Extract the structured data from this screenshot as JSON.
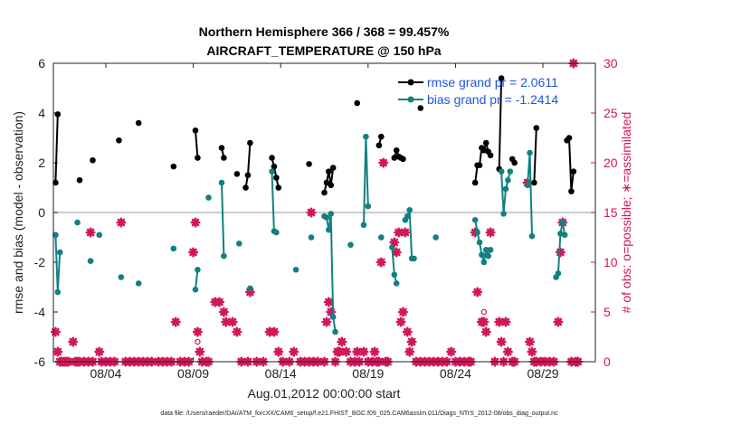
{
  "colors": {
    "rmse": "#000000",
    "bias": "#128080",
    "obs": "#d3155a",
    "zero_line": "#bbbbbb",
    "legend_text": "#1f55e0"
  },
  "chart_data": {
    "type": "line",
    "title": "Northern Hemisphere 366 / 368 = 99.457%",
    "subtitle": "AIRCRAFT_TEMPERATURE @ 150 hPa",
    "xlabel": "Aug.01,2012 00:00:00 start",
    "ylabel": "rmse and bias (model - observation)",
    "y2label": "# of obs: o=possible; ∗=assimilated",
    "footer": "data file: /Users/raeder/DAI/ATM_forcXX/CAM6_setup/f.e21.FHIST_BGC.f09_025.CAM6assim.011/Diags_NTrS_2012-08/obs_diag_output.nc",
    "xlim": [
      1,
      32
    ],
    "ylim": [
      -6,
      6
    ],
    "y2lim": [
      0,
      30
    ],
    "xticks": [
      {
        "day": 4,
        "label": "08/04"
      },
      {
        "day": 9,
        "label": "08/09"
      },
      {
        "day": 14,
        "label": "08/14"
      },
      {
        "day": 19,
        "label": "08/19"
      },
      {
        "day": 24,
        "label": "08/24"
      },
      {
        "day": 29,
        "label": "08/29"
      }
    ],
    "yticks": [
      "-6",
      "-4",
      "-2",
      "0",
      "2",
      "4",
      "6"
    ],
    "y2ticks": [
      "0",
      "5",
      "10",
      "15",
      "20",
      "25",
      "30"
    ],
    "legend": {
      "location": "top-right",
      "rmse_label": "rmse grand pr = 2.0611",
      "bias_label": "bias grand pr = -1.2414"
    },
    "series": [
      {
        "name": "rmse",
        "segments": [
          [
            [
              1.125,
              1.2
            ],
            [
              1.25,
              3.95
            ]
          ],
          [
            [
              2.5,
              1.3
            ]
          ],
          [
            [
              3.25,
              2.1
            ]
          ],
          [
            [
              4.75,
              2.9
            ]
          ],
          [
            [
              5.875,
              3.6
            ]
          ],
          [
            [
              7.875,
              1.85
            ]
          ],
          [
            [
              9.125,
              3.3
            ],
            [
              9.25,
              2.2
            ]
          ],
          [
            [
              10.625,
              2.6
            ],
            [
              10.75,
              2.2
            ]
          ],
          [
            [
              11.5,
              1.55
            ]
          ],
          [
            [
              12.0,
              1.0
            ],
            [
              12.125,
              1.5
            ],
            [
              12.25,
              2.8
            ]
          ],
          [
            [
              13.5,
              2.2
            ],
            [
              13.625,
              1.85
            ],
            [
              13.75,
              1.4
            ],
            [
              13.875,
              1.0
            ]
          ],
          [
            [
              15.625,
              1.95
            ]
          ],
          [
            [
              16.5,
              0.8
            ],
            [
              16.625,
              1.2
            ],
            [
              16.75,
              1.65
            ],
            [
              16.875,
              1.1
            ],
            [
              17.0,
              1.8
            ]
          ],
          [
            [
              18.375,
              4.4
            ]
          ],
          [
            [
              19.625,
              2.7
            ],
            [
              19.75,
              3.05
            ]
          ],
          [
            [
              20.5,
              2.2
            ],
            [
              20.625,
              2.5
            ],
            [
              20.75,
              2.25
            ],
            [
              20.875,
              2.2
            ],
            [
              21.0,
              2.15
            ]
          ],
          [
            [
              22.0,
              4.2
            ]
          ],
          [
            [
              25.125,
              1.2
            ],
            [
              25.25,
              1.9
            ],
            [
              25.375,
              1.9
            ],
            [
              25.5,
              2.6
            ],
            [
              25.625,
              2.5
            ],
            [
              25.75,
              2.8
            ],
            [
              25.875,
              2.45
            ],
            [
              26.0,
              2.3
            ]
          ],
          [
            [
              26.5,
              1.75
            ],
            [
              26.625,
              5.4
            ]
          ],
          [
            [
              27.25,
              2.15
            ],
            [
              27.375,
              2.0
            ]
          ],
          [
            [
              28.5,
              1.2
            ],
            [
              28.625,
              3.4
            ]
          ],
          [
            [
              30.375,
              2.9
            ],
            [
              30.5,
              3.0
            ],
            [
              30.625,
              0.85
            ],
            [
              30.75,
              1.65
            ]
          ]
        ]
      },
      {
        "name": "bias",
        "segments": [
          [
            [
              1.125,
              -0.9
            ],
            [
              1.25,
              -3.2
            ],
            [
              1.375,
              -1.6
            ]
          ],
          [
            [
              2.375,
              -0.4
            ]
          ],
          [
            [
              3.125,
              -1.95
            ]
          ],
          [
            [
              3.625,
              -0.9
            ]
          ],
          [
            [
              4.875,
              -2.6
            ]
          ],
          [
            [
              5.875,
              -2.85
            ]
          ],
          [
            [
              7.875,
              -1.45
            ]
          ],
          [
            [
              9.125,
              -3.1
            ],
            [
              9.25,
              -2.3
            ]
          ],
          [
            [
              9.875,
              0.6
            ]
          ],
          [
            [
              10.625,
              1.2
            ],
            [
              10.75,
              -1.75
            ]
          ],
          [
            [
              11.625,
              -1.25
            ]
          ],
          [
            [
              12.25,
              -3.05
            ]
          ],
          [
            [
              13.5,
              1.65
            ],
            [
              13.625,
              -0.75
            ],
            [
              13.75,
              -0.8
            ]
          ],
          [
            [
              14.875,
              -2.3
            ]
          ],
          [
            [
              15.75,
              -1.0
            ]
          ],
          [
            [
              16.5,
              -0.15
            ],
            [
              16.625,
              -0.2
            ],
            [
              16.75,
              -0.7
            ],
            [
              16.875,
              -0.05
            ],
            [
              17.0,
              -4.2
            ],
            [
              17.125,
              -4.8
            ]
          ],
          [
            [
              18.0,
              -1.3
            ]
          ],
          [
            [
              18.75,
              -0.5
            ],
            [
              18.875,
              3.05
            ],
            [
              19.0,
              0.25
            ]
          ],
          [
            [
              19.75,
              -1.0
            ]
          ],
          [
            [
              20.375,
              -1.4
            ],
            [
              20.5,
              -2.5
            ],
            [
              20.625,
              -2.85
            ]
          ],
          [
            [
              21.125,
              -0.3
            ],
            [
              21.25,
              -0.15
            ],
            [
              21.375,
              0.1
            ],
            [
              21.5,
              -1.85
            ],
            [
              21.625,
              -1.85
            ]
          ],
          [
            [
              22.875,
              -1.0
            ]
          ],
          [
            [
              25.125,
              -0.3
            ],
            [
              25.25,
              -0.8
            ],
            [
              25.375,
              -1.2
            ],
            [
              25.5,
              -1.7
            ],
            [
              25.625,
              -2.0
            ],
            [
              25.75,
              -1.5
            ],
            [
              25.875,
              -1.75
            ],
            [
              26.0,
              -1.5
            ]
          ],
          [
            [
              26.625,
              1.65
            ],
            [
              26.75,
              -0.05
            ],
            [
              26.875,
              0.95
            ],
            [
              27.0,
              1.3
            ],
            [
              27.125,
              1.65
            ]
          ],
          [
            [
              28.125,
              1.1
            ],
            [
              28.25,
              2.4
            ],
            [
              28.375,
              -0.95
            ]
          ],
          [
            [
              29.75,
              -2.6
            ],
            [
              29.875,
              -2.45
            ],
            [
              30.0,
              -0.85
            ],
            [
              30.125,
              -0.4
            ],
            [
              30.25,
              -0.9
            ]
          ]
        ]
      }
    ],
    "obs_assimilated": [
      [
        1.125,
        3
      ],
      [
        1.25,
        1
      ],
      [
        1.375,
        0
      ],
      [
        1.5,
        0
      ],
      [
        1.625,
        0
      ],
      [
        1.75,
        0
      ],
      [
        1.875,
        0
      ],
      [
        2.125,
        2
      ],
      [
        2.25,
        0
      ],
      [
        2.375,
        0
      ],
      [
        2.5,
        0
      ],
      [
        2.75,
        0
      ],
      [
        3.0,
        0
      ],
      [
        3.125,
        13
      ],
      [
        3.25,
        0
      ],
      [
        3.625,
        1
      ],
      [
        3.75,
        0
      ],
      [
        4.0,
        0
      ],
      [
        4.25,
        0
      ],
      [
        4.5,
        0
      ],
      [
        4.875,
        14
      ],
      [
        5.125,
        0
      ],
      [
        5.375,
        0
      ],
      [
        5.625,
        0
      ],
      [
        5.875,
        0
      ],
      [
        6.125,
        0
      ],
      [
        6.375,
        0
      ],
      [
        6.625,
        0
      ],
      [
        7.0,
        0
      ],
      [
        7.25,
        0
      ],
      [
        7.5,
        0
      ],
      [
        7.75,
        0
      ],
      [
        8.0,
        4
      ],
      [
        8.25,
        0
      ],
      [
        8.5,
        0
      ],
      [
        8.75,
        0
      ],
      [
        9.0,
        11
      ],
      [
        9.125,
        14
      ],
      [
        9.25,
        3
      ],
      [
        9.375,
        1
      ],
      [
        9.5,
        0
      ],
      [
        9.75,
        0
      ],
      [
        9.875,
        0
      ],
      [
        10.25,
        6
      ],
      [
        10.5,
        6
      ],
      [
        10.75,
        5
      ],
      [
        10.875,
        4
      ],
      [
        11.25,
        4
      ],
      [
        11.5,
        3
      ],
      [
        11.75,
        0
      ],
      [
        12.125,
        0
      ],
      [
        12.25,
        7
      ],
      [
        12.625,
        0
      ],
      [
        13.0,
        0
      ],
      [
        13.375,
        3
      ],
      [
        13.625,
        3
      ],
      [
        13.875,
        1
      ],
      [
        14.125,
        0
      ],
      [
        14.5,
        0
      ],
      [
        14.75,
        1
      ],
      [
        15.125,
        0
      ],
      [
        15.375,
        0
      ],
      [
        15.625,
        0
      ],
      [
        15.75,
        15
      ],
      [
        15.875,
        0
      ],
      [
        16.125,
        0
      ],
      [
        16.5,
        0
      ],
      [
        16.625,
        4
      ],
      [
        16.75,
        6
      ],
      [
        16.875,
        5
      ],
      [
        17.125,
        0
      ],
      [
        17.25,
        1
      ],
      [
        17.375,
        1
      ],
      [
        17.5,
        2
      ],
      [
        17.75,
        1
      ],
      [
        18.0,
        0
      ],
      [
        18.25,
        0
      ],
      [
        18.375,
        1
      ],
      [
        18.5,
        0
      ],
      [
        18.75,
        1
      ],
      [
        19.0,
        0
      ],
      [
        19.25,
        0
      ],
      [
        19.375,
        1
      ],
      [
        19.5,
        0
      ],
      [
        19.625,
        0
      ],
      [
        19.75,
        10
      ],
      [
        19.875,
        20
      ],
      [
        20.0,
        0
      ],
      [
        20.125,
        0
      ],
      [
        20.5,
        12
      ],
      [
        20.625,
        11
      ],
      [
        20.75,
        13
      ],
      [
        20.875,
        4
      ],
      [
        21.0,
        5
      ],
      [
        21.125,
        13
      ],
      [
        21.25,
        3
      ],
      [
        21.375,
        1
      ],
      [
        21.5,
        2
      ],
      [
        21.75,
        0
      ],
      [
        22.0,
        0
      ],
      [
        22.25,
        0
      ],
      [
        22.5,
        0
      ],
      [
        22.75,
        0
      ],
      [
        23.0,
        0
      ],
      [
        23.25,
        0
      ],
      [
        23.5,
        0
      ],
      [
        23.75,
        1
      ],
      [
        24.0,
        0
      ],
      [
        24.25,
        0
      ],
      [
        24.5,
        0
      ],
      [
        24.75,
        0
      ],
      [
        24.875,
        0
      ],
      [
        25.125,
        13
      ],
      [
        25.25,
        7
      ],
      [
        25.5,
        4
      ],
      [
        25.625,
        4
      ],
      [
        25.75,
        3
      ],
      [
        26.0,
        13
      ],
      [
        26.25,
        0
      ],
      [
        26.5,
        4
      ],
      [
        26.625,
        2
      ],
      [
        26.75,
        0
      ],
      [
        26.875,
        4
      ],
      [
        27.0,
        1
      ],
      [
        27.25,
        0
      ],
      [
        27.375,
        0
      ],
      [
        28.125,
        18
      ],
      [
        28.25,
        2
      ],
      [
        28.375,
        1
      ],
      [
        28.5,
        0
      ],
      [
        28.625,
        0
      ],
      [
        28.875,
        0
      ],
      [
        29.125,
        0
      ],
      [
        29.375,
        0
      ],
      [
        29.625,
        0
      ],
      [
        29.875,
        4
      ],
      [
        30.0,
        11
      ],
      [
        30.125,
        14
      ],
      [
        30.625,
        0
      ],
      [
        30.75,
        30
      ],
      [
        30.875,
        0
      ],
      [
        31.0,
        0
      ]
    ],
    "obs_possible_only": [
      [
        9.25,
        2
      ],
      [
        25.625,
        5
      ]
    ]
  }
}
